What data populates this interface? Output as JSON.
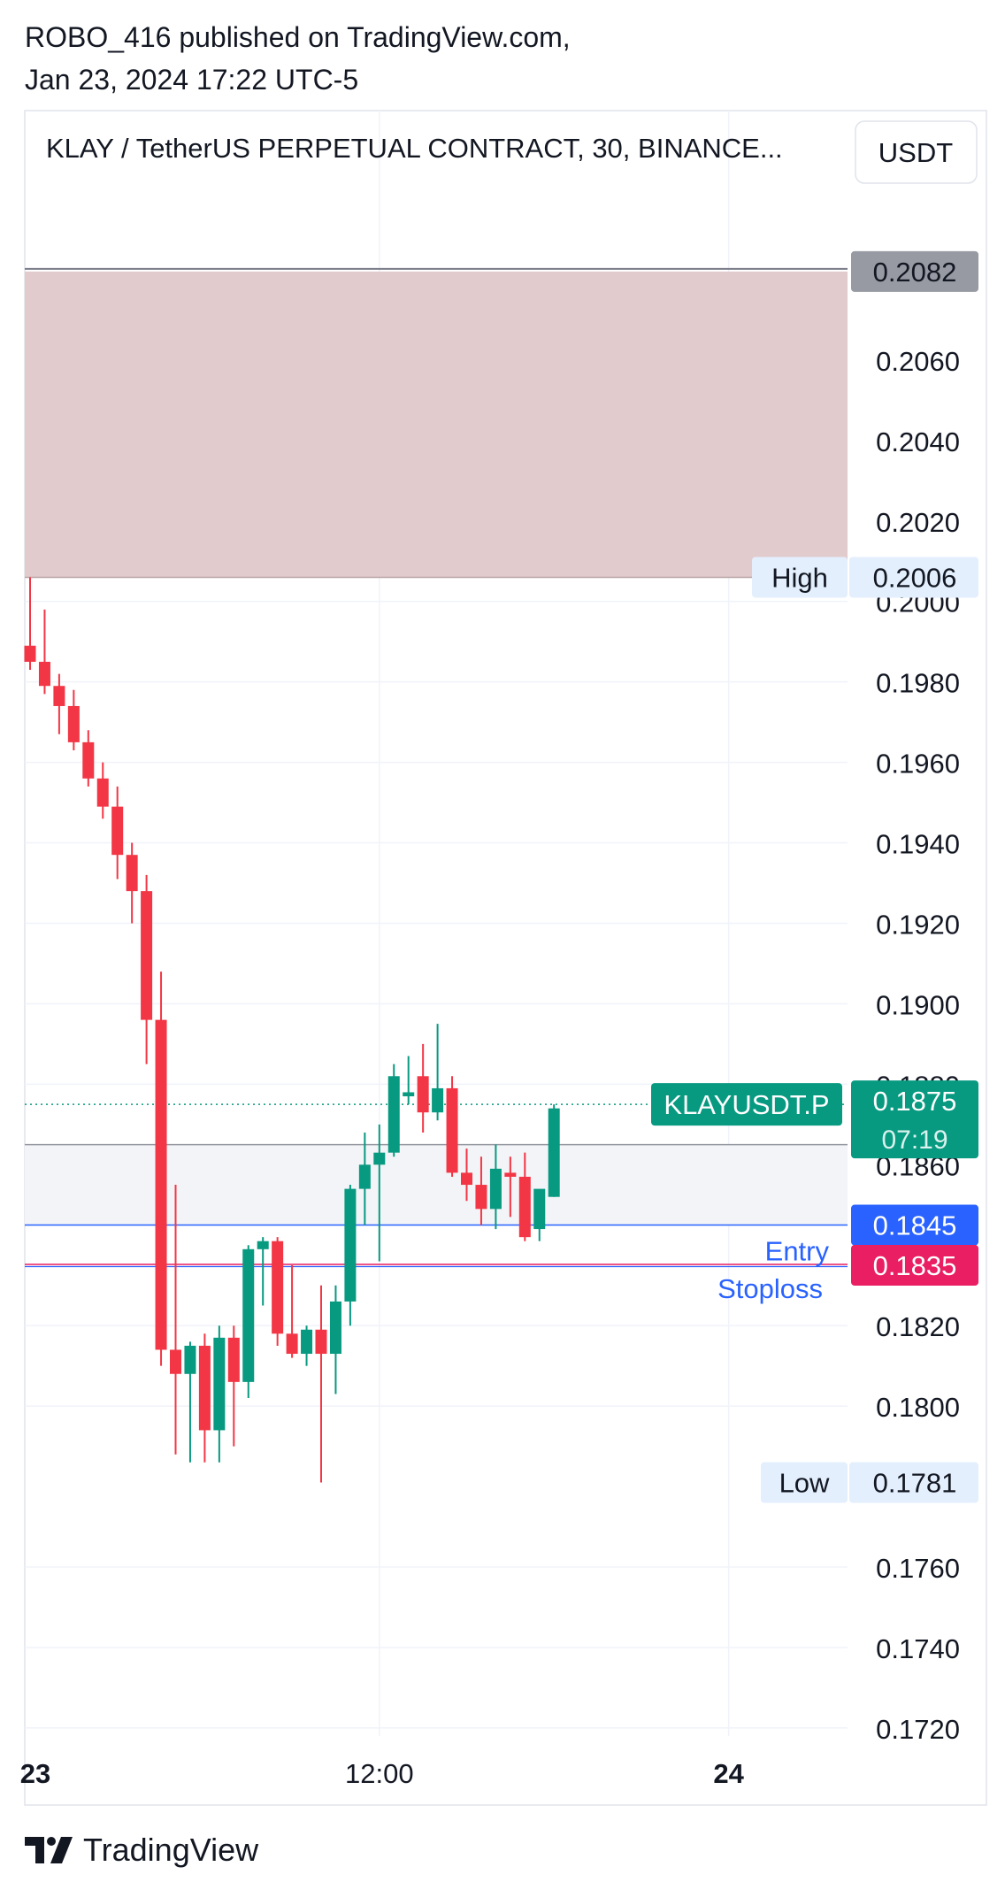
{
  "header": {
    "line1": "ROBO_416 published on TradingView.com,",
    "line2": "Jan 23, 2024 17:22 UTC-5"
  },
  "footer": {
    "brand": "TradingView"
  },
  "chart_data": {
    "type": "candlestick",
    "title": "KLAY / TetherUS PERPETUAL CONTRACT, 30, BINANCE...",
    "currency": "USDT",
    "y_ticks": [
      "0.2060",
      "0.2040",
      "0.2020",
      "0.2000",
      "0.1980",
      "0.1960",
      "0.1940",
      "0.1920",
      "0.1900",
      "0.1880",
      "0.1860",
      "0.1820",
      "0.1800",
      "0.1760",
      "0.1740",
      "0.1720"
    ],
    "x_labels": [
      {
        "label": "23",
        "bold": true,
        "index": -0.2
      },
      {
        "label": "12:00",
        "bold": false,
        "index": 24
      },
      {
        "label": "24",
        "bold": true,
        "index": 48
      }
    ],
    "ylim": [
      0.1718,
      0.2122
    ],
    "zone": {
      "from": 0.2006,
      "to": 0.2082,
      "color": "#e2cbcd"
    },
    "range_box": {
      "from": 0.1845,
      "to": 0.1865
    },
    "price_labels": [
      {
        "value": "0.2082",
        "price": 0.2082,
        "bg": "#979aa3",
        "fg": "#131722"
      },
      {
        "value": "0.1875",
        "price": 0.1875,
        "bg": "#089981",
        "fg": "#ffffff",
        "sub": "07:19"
      },
      {
        "value": "0.1845",
        "price": 0.1845,
        "bg": "#2962ff",
        "fg": "#ffffff"
      },
      {
        "value": "0.1835",
        "price": 0.1835,
        "bg": "#e91e63",
        "fg": "#ffffff"
      }
    ],
    "markers": [
      {
        "name": "High",
        "value": "0.2006",
        "price": 0.2006
      },
      {
        "name": "Low",
        "value": "0.1781",
        "price": 0.1781
      }
    ],
    "symbol_label": "KLAYUSDT.P",
    "entry_label": "Entry",
    "stoploss_label": "Stoploss",
    "lines": {
      "entry": 0.1845,
      "stoploss": 0.1835,
      "last": 0.1875
    },
    "colors": {
      "up": "#089981",
      "down": "#f23645"
    },
    "candles": [
      {
        "o": 0.1989,
        "h": 0.2006,
        "l": 0.1983,
        "c": 0.1985
      },
      {
        "o": 0.1985,
        "h": 0.1998,
        "l": 0.1977,
        "c": 0.1979
      },
      {
        "o": 0.1979,
        "h": 0.1982,
        "l": 0.1967,
        "c": 0.1974
      },
      {
        "o": 0.1974,
        "h": 0.1978,
        "l": 0.1963,
        "c": 0.1965
      },
      {
        "o": 0.1965,
        "h": 0.1968,
        "l": 0.1954,
        "c": 0.1956
      },
      {
        "o": 0.1956,
        "h": 0.196,
        "l": 0.1946,
        "c": 0.1949
      },
      {
        "o": 0.1949,
        "h": 0.1954,
        "l": 0.1931,
        "c": 0.1937
      },
      {
        "o": 0.1937,
        "h": 0.194,
        "l": 0.192,
        "c": 0.1928
      },
      {
        "o": 0.1928,
        "h": 0.1932,
        "l": 0.1885,
        "c": 0.1896
      },
      {
        "o": 0.1896,
        "h": 0.1908,
        "l": 0.181,
        "c": 0.1814
      },
      {
        "o": 0.1814,
        "h": 0.1855,
        "l": 0.1788,
        "c": 0.1808
      },
      {
        "o": 0.1808,
        "h": 0.1816,
        "l": 0.1786,
        "c": 0.1815
      },
      {
        "o": 0.1815,
        "h": 0.1818,
        "l": 0.1786,
        "c": 0.1794
      },
      {
        "o": 0.1794,
        "h": 0.182,
        "l": 0.1786,
        "c": 0.1817
      },
      {
        "o": 0.1817,
        "h": 0.182,
        "l": 0.179,
        "c": 0.1806
      },
      {
        "o": 0.1806,
        "h": 0.184,
        "l": 0.1802,
        "c": 0.1839
      },
      {
        "o": 0.1839,
        "h": 0.1842,
        "l": 0.1825,
        "c": 0.1841
      },
      {
        "o": 0.1841,
        "h": 0.1842,
        "l": 0.1815,
        "c": 0.1818
      },
      {
        "o": 0.1818,
        "h": 0.1835,
        "l": 0.1812,
        "c": 0.1813
      },
      {
        "o": 0.1813,
        "h": 0.182,
        "l": 0.181,
        "c": 0.1819
      },
      {
        "o": 0.1819,
        "h": 0.183,
        "l": 0.1781,
        "c": 0.1813
      },
      {
        "o": 0.1813,
        "h": 0.183,
        "l": 0.1803,
        "c": 0.1826
      },
      {
        "o": 0.1826,
        "h": 0.1855,
        "l": 0.182,
        "c": 0.1854
      },
      {
        "o": 0.1854,
        "h": 0.1868,
        "l": 0.1845,
        "c": 0.186
      },
      {
        "o": 0.186,
        "h": 0.187,
        "l": 0.1836,
        "c": 0.1863
      },
      {
        "o": 0.1863,
        "h": 0.1885,
        "l": 0.1862,
        "c": 0.1882
      },
      {
        "o": 0.1877,
        "h": 0.1887,
        "l": 0.1875,
        "c": 0.1878
      },
      {
        "o": 0.1882,
        "h": 0.189,
        "l": 0.1868,
        "c": 0.1873
      },
      {
        "o": 0.1873,
        "h": 0.1895,
        "l": 0.1871,
        "c": 0.1879
      },
      {
        "o": 0.1879,
        "h": 0.1882,
        "l": 0.1857,
        "c": 0.1858
      },
      {
        "o": 0.1858,
        "h": 0.1864,
        "l": 0.1851,
        "c": 0.1855
      },
      {
        "o": 0.1855,
        "h": 0.1862,
        "l": 0.1845,
        "c": 0.1849
      },
      {
        "o": 0.1849,
        "h": 0.1865,
        "l": 0.1844,
        "c": 0.1859
      },
      {
        "o": 0.1858,
        "h": 0.1862,
        "l": 0.1847,
        "c": 0.1857
      },
      {
        "o": 0.1857,
        "h": 0.1863,
        "l": 0.1841,
        "c": 0.1842
      },
      {
        "o": 0.1844,
        "h": 0.1853,
        "l": 0.1841,
        "c": 0.1854
      },
      {
        "o": 0.1852,
        "h": 0.1875,
        "l": 0.1852,
        "c": 0.1874
      }
    ]
  }
}
